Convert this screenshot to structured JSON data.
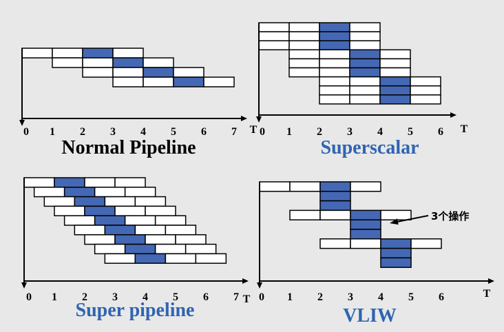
{
  "colors": {
    "background": "#e8e8e8",
    "cell": "#ffffff",
    "highlight": "#4468b4",
    "ink": "#000000"
  },
  "panels": {
    "normal_pipeline": {
      "title": "Normal Pipeline",
      "title_color": "#000000",
      "ticks": [
        "0",
        "1",
        "2",
        "3",
        "4",
        "5",
        "6",
        "7"
      ],
      "axis_label": "T",
      "rows": [
        {
          "start": 0,
          "cells": [
            0,
            0,
            1,
            0
          ]
        },
        {
          "start": 1,
          "cells": [
            0,
            0,
            1,
            0
          ]
        },
        {
          "start": 2,
          "cells": [
            0,
            0,
            1,
            0
          ]
        },
        {
          "start": 3,
          "cells": [
            0,
            0,
            1,
            0
          ]
        }
      ]
    },
    "superscalar": {
      "title": "Superscalar",
      "title_color": "#2f64b2",
      "ticks": [
        "0",
        "1",
        "2",
        "3",
        "4",
        "5",
        "6"
      ],
      "axis_label": "T",
      "rows": [
        {
          "start": 0,
          "cells": [
            0,
            0,
            1,
            0
          ]
        },
        {
          "start": 0,
          "cells": [
            0,
            0,
            1,
            0
          ]
        },
        {
          "start": 0,
          "cells": [
            0,
            0,
            1,
            0
          ]
        },
        {
          "start": 1,
          "cells": [
            0,
            0,
            1,
            0
          ]
        },
        {
          "start": 1,
          "cells": [
            0,
            0,
            1,
            0
          ]
        },
        {
          "start": 1,
          "cells": [
            0,
            0,
            1,
            0
          ]
        },
        {
          "start": 2,
          "cells": [
            0,
            0,
            1,
            0
          ]
        },
        {
          "start": 2,
          "cells": [
            0,
            0,
            1,
            0
          ]
        },
        {
          "start": 2,
          "cells": [
            0,
            0,
            1,
            0
          ]
        }
      ]
    },
    "super_pipeline": {
      "title": "Super pipeline",
      "title_color": "#2f64b2",
      "ticks": [
        "0",
        "1",
        "2",
        "3",
        "4",
        "5",
        "6",
        "7"
      ],
      "axis_label": "T",
      "rows": [
        {
          "start": 0,
          "cells": [
            0,
            1,
            0,
            0
          ]
        },
        {
          "start": 0.333,
          "cells": [
            0,
            1,
            0,
            0
          ]
        },
        {
          "start": 0.667,
          "cells": [
            0,
            1,
            0,
            0
          ]
        },
        {
          "start": 1,
          "cells": [
            0,
            1,
            0,
            0
          ]
        },
        {
          "start": 1.333,
          "cells": [
            0,
            1,
            0,
            0
          ]
        },
        {
          "start": 1.667,
          "cells": [
            0,
            1,
            0,
            0
          ]
        },
        {
          "start": 2,
          "cells": [
            0,
            1,
            0,
            0
          ]
        },
        {
          "start": 2.333,
          "cells": [
            0,
            1,
            0,
            0
          ]
        },
        {
          "start": 2.667,
          "cells": [
            0,
            1,
            0,
            0
          ]
        }
      ]
    },
    "vliw": {
      "title": "VLIW",
      "title_color": "#2f64b2",
      "ticks": [
        "0",
        "1",
        "2",
        "3",
        "4",
        "5",
        "6"
      ],
      "axis_label": "T",
      "rows": [
        {
          "start": 0,
          "cells": [
            0,
            0,
            1,
            0
          ]
        },
        {
          "start": 2,
          "cells": [
            1
          ]
        },
        {
          "start": 2,
          "cells": [
            1
          ]
        },
        {
          "start": 1,
          "cells": [
            0,
            0,
            1,
            0
          ]
        },
        {
          "start": 3,
          "cells": [
            1
          ]
        },
        {
          "start": 3,
          "cells": [
            1
          ]
        },
        {
          "start": 2,
          "cells": [
            0,
            0,
            1,
            0
          ]
        },
        {
          "start": 4,
          "cells": [
            1
          ]
        },
        {
          "start": 4,
          "cells": [
            1
          ]
        }
      ]
    }
  },
  "annotation": {
    "text": "3个操作"
  }
}
